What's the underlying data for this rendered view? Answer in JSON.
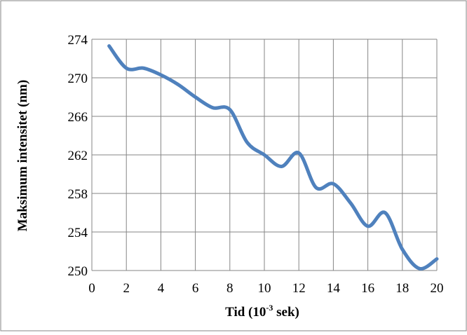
{
  "chart_data": {
    "type": "line",
    "title": "",
    "xlabel": "Tid (10",
    "xlabel_sup": "-3",
    "xlabel_suffix": " sek)",
    "ylabel": "Maksimum intensitet (nm)",
    "xlim": [
      0,
      20
    ],
    "ylim": [
      250,
      274
    ],
    "x_ticks": [
      0,
      2,
      4,
      6,
      8,
      10,
      12,
      14,
      16,
      18,
      20
    ],
    "y_ticks": [
      250,
      254,
      258,
      262,
      266,
      270,
      274
    ],
    "grid": true,
    "legend": "none",
    "smooth": true,
    "series": [
      {
        "color": "#4F81BD",
        "x": [
          1,
          2,
          3,
          4,
          5,
          6,
          7,
          8,
          9,
          10,
          11,
          12,
          13,
          14,
          15,
          16,
          17,
          18,
          19,
          20
        ],
        "y": [
          273.3,
          271.0,
          271.0,
          270.3,
          269.3,
          268.0,
          266.9,
          266.7,
          263.3,
          262.0,
          260.8,
          262.2,
          258.6,
          259.0,
          257.0,
          254.6,
          256.0,
          252.2,
          250.2,
          251.2
        ]
      }
    ]
  }
}
